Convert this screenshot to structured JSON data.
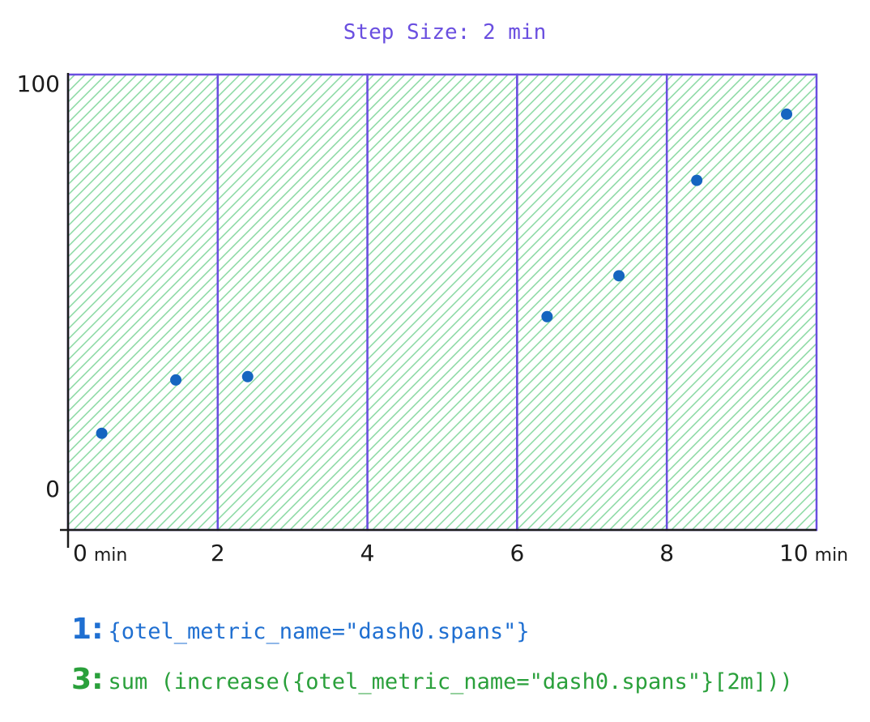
{
  "chart_data": {
    "type": "scatter",
    "title": "Step Size: 2 min",
    "x_ticks": [
      {
        "value": 0,
        "label": "0",
        "unit": "min"
      },
      {
        "value": 2,
        "label": "2",
        "unit": ""
      },
      {
        "value": 4,
        "label": "4",
        "unit": ""
      },
      {
        "value": 6,
        "label": "6",
        "unit": ""
      },
      {
        "value": 8,
        "label": "8",
        "unit": ""
      },
      {
        "value": 10,
        "label": "10",
        "unit": "min"
      }
    ],
    "y_ticks": [
      {
        "value": 0,
        "label": "0"
      },
      {
        "value": 100,
        "label": "100"
      }
    ],
    "xlim": [
      0,
      10
    ],
    "ylim": [
      -5.6,
      103.7
    ],
    "step_size": 2,
    "step_fill_color": "#7fd69a",
    "border_color": "#6a4fe0",
    "point_color": "#1565c0",
    "points": [
      {
        "x": 0.45,
        "y": 17.6
      },
      {
        "x": 1.44,
        "y": 30.4
      },
      {
        "x": 2.4,
        "y": 31.2
      },
      {
        "x": 6.4,
        "y": 45.6
      },
      {
        "x": 7.36,
        "y": 55.4
      },
      {
        "x": 8.4,
        "y": 78.3
      },
      {
        "x": 9.6,
        "y": 94.2
      }
    ]
  },
  "queries": [
    {
      "number": "1",
      "separator": ":",
      "text": "{otel_metric_name=\"dash0.spans\"}"
    },
    {
      "number": "3",
      "separator": ":",
      "text": "sum (increase({otel_metric_name=\"dash0.spans\"}[2m]))"
    }
  ]
}
